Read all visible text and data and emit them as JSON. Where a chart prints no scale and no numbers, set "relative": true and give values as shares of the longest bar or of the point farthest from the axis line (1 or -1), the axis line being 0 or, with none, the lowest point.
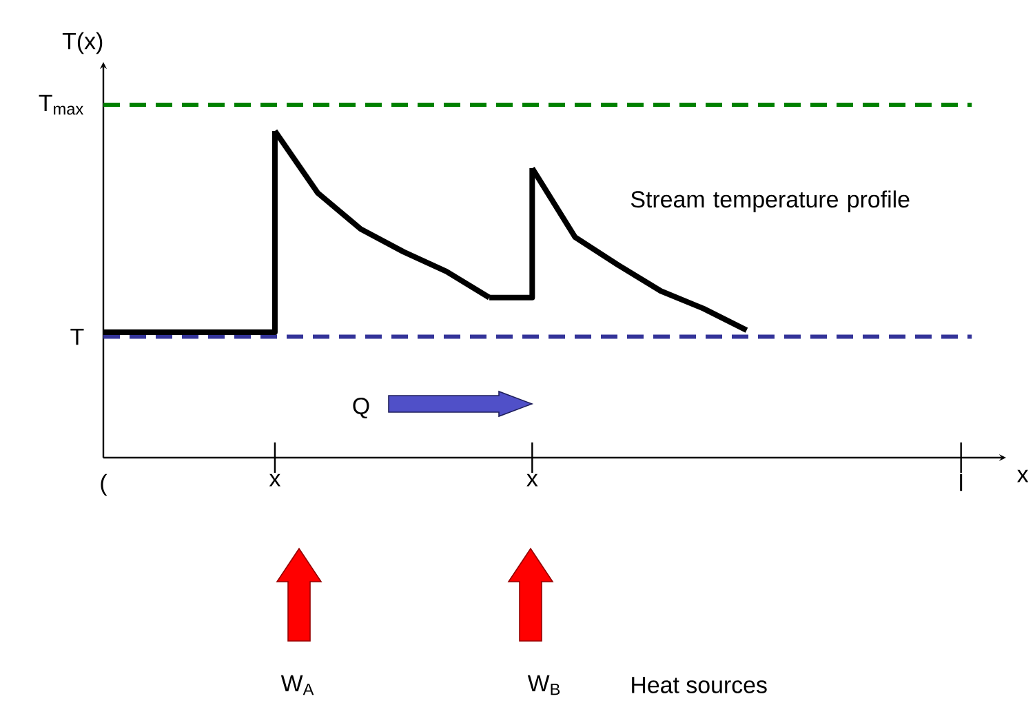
{
  "chart_data": {
    "type": "line",
    "relative": true,
    "ylabel": "T(x)",
    "xlabel": "x",
    "categories": [
      "(",
      null,
      null,
      null,
      "x",
      null,
      null,
      null,
      null,
      null,
      "x",
      null,
      null,
      null,
      null,
      null,
      null,
      null,
      null,
      null,
      "l",
      null
    ],
    "series": [
      {
        "type": "step",
        "color": "#000000",
        "values": [
          0.384,
          0.384,
          0.384,
          0.384,
          1.0,
          null,
          null,
          null,
          null,
          null,
          null,
          null,
          null,
          null,
          null,
          null,
          null,
          null,
          null,
          null,
          null,
          null
        ]
      },
      {
        "color": "#000000",
        "values": [
          null,
          null,
          null,
          null,
          1.0,
          0.81,
          0.7,
          0.63,
          0.57,
          0.49,
          null,
          null,
          null,
          null,
          null,
          null,
          null,
          null,
          null,
          null,
          null,
          null
        ]
      },
      {
        "type": "step",
        "color": "#000000",
        "values": [
          null,
          null,
          null,
          null,
          null,
          null,
          null,
          null,
          null,
          0.49,
          0.886,
          null,
          null,
          null,
          null,
          null,
          null,
          null,
          null,
          null,
          null,
          null
        ]
      },
      {
        "color": "#000000",
        "values": [
          null,
          null,
          null,
          null,
          null,
          null,
          null,
          null,
          null,
          null,
          0.886,
          0.675,
          0.59,
          0.51,
          0.456,
          0.39,
          null,
          null,
          null,
          null,
          null,
          null
        ]
      }
    ],
    "ref_lines": [
      {
        "axis": "y",
        "value": 1.08,
        "label": "T$_{max}$",
        "color": "#008000",
        "line_style": "dashed"
      },
      {
        "axis": "y",
        "value": 0.37,
        "label": "T",
        "color": "#333399",
        "line_style": "dashed"
      }
    ],
    "annotations": [
      "Stream temperature profile",
      "Q",
      "W$_{A}$",
      "W$_{B}$",
      "Heat sources"
    ],
    "grid": false,
    "marker": "none",
    "line_style": "solid"
  }
}
